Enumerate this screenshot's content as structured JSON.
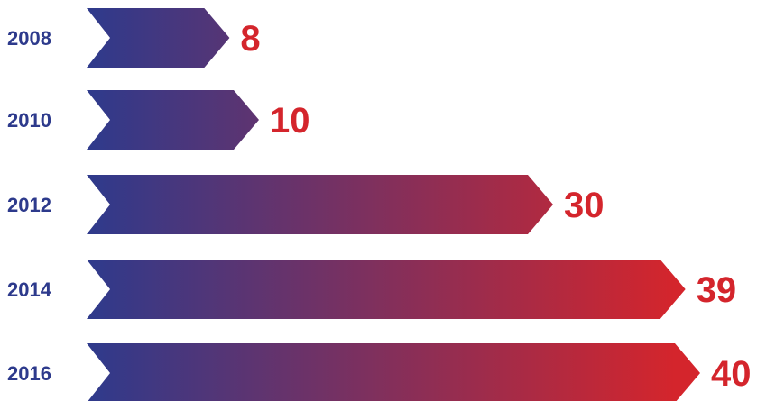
{
  "chart_data": {
    "type": "bar",
    "orientation": "horizontal",
    "categories": [
      "2008",
      "2010",
      "2012",
      "2014",
      "2016"
    ],
    "values": [
      8,
      10,
      30,
      39,
      40
    ],
    "title": "",
    "xlabel": "",
    "ylabel": "",
    "xlim": [
      0,
      40
    ],
    "grid": false,
    "legend": "none",
    "bar_shape": "chevron-arrow",
    "gradient_start_color": "#2e3a8c",
    "gradient_end_color": "#d4252c",
    "category_label_color": "#2d3a8c",
    "value_label_color": "#d4252c"
  }
}
